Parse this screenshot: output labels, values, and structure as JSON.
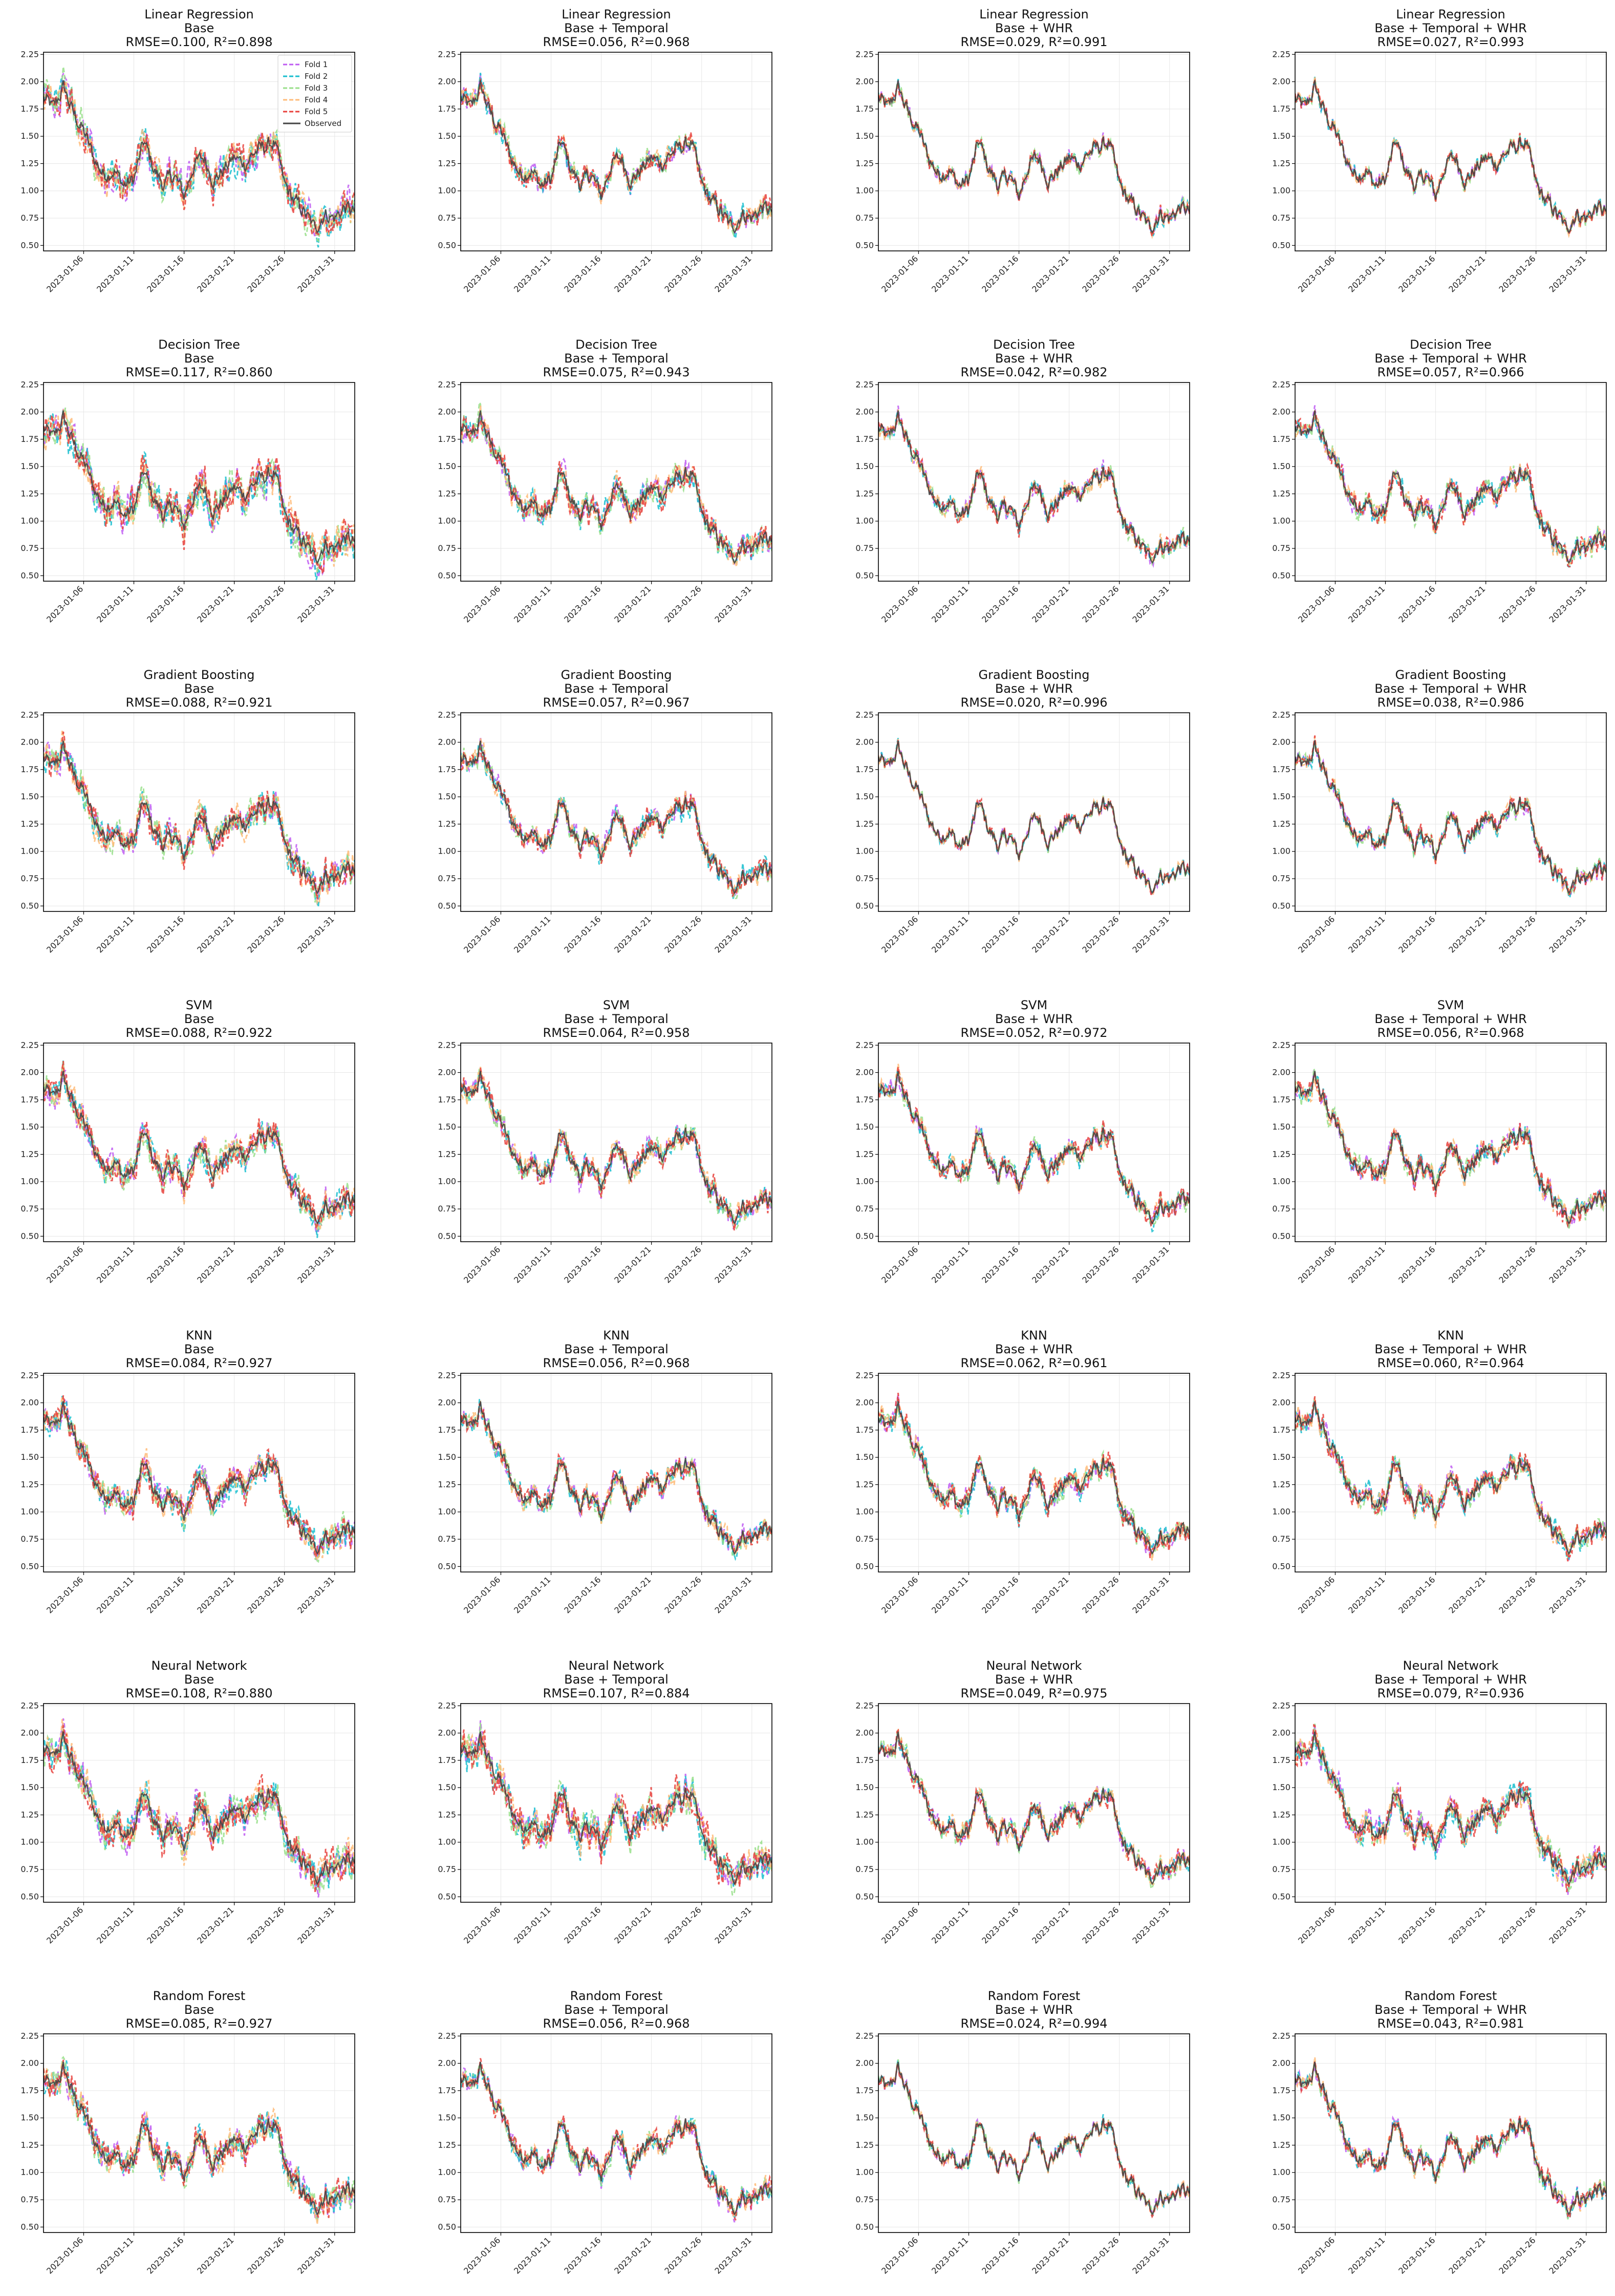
{
  "figure": {
    "models": [
      "Linear Regression",
      "Decision Tree",
      "Gradient Boosting",
      "SVM",
      "KNN",
      "Neural Network",
      "Random Forest"
    ],
    "feature_sets": [
      "Base",
      "Base + Temporal",
      "Base + WHR",
      "Base + Temporal + WHR"
    ]
  },
  "chart_data": {
    "type": "line",
    "grid": true,
    "legend_placement": "upper-right (first panel only)",
    "series_style": {
      "Fold 1": {
        "color": "#bf5cf2",
        "dash": "dashed"
      },
      "Fold 2": {
        "color": "#17becf",
        "dash": "dashed"
      },
      "Fold 3": {
        "color": "#98df8a",
        "dash": "dashed"
      },
      "Fold 4": {
        "color": "#ffbb78",
        "dash": "dashed"
      },
      "Fold 5": {
        "color": "#e8413c",
        "dash": "dashed"
      },
      "Observed": {
        "color": "#444444",
        "dash": "solid"
      }
    },
    "legend": [
      "Fold 1",
      "Fold 2",
      "Fold 3",
      "Fold 4",
      "Fold 5",
      "Observed"
    ],
    "ylim": [
      0.45,
      2.27
    ],
    "yticks": [
      "0.50",
      "0.75",
      "1.00",
      "1.25",
      "1.50",
      "1.75",
      "2.00",
      "2.25"
    ],
    "xlim": [
      "2023-01-02",
      "2023-02-02"
    ],
    "xticks": [
      "2023-01-06",
      "2023-01-11",
      "2023-01-16",
      "2023-01-21",
      "2023-01-26",
      "2023-01-31"
    ],
    "observed_approx": {
      "x": [
        "2023-01-02",
        "2023-01-03",
        "2023-01-04",
        "2023-01-05",
        "2023-01-06",
        "2023-01-07",
        "2023-01-08",
        "2023-01-09",
        "2023-01-10",
        "2023-01-11",
        "2023-01-12",
        "2023-01-13",
        "2023-01-14",
        "2023-01-15",
        "2023-01-16",
        "2023-01-17",
        "2023-01-18",
        "2023-01-19",
        "2023-01-20",
        "2023-01-21",
        "2023-01-22",
        "2023-01-23",
        "2023-01-24",
        "2023-01-25",
        "2023-01-26",
        "2023-01-27",
        "2023-01-28",
        "2023-01-29",
        "2023-01-30",
        "2023-01-31",
        "2023-02-01",
        "2023-02-02"
      ],
      "y": [
        1.85,
        1.75,
        1.95,
        1.7,
        1.55,
        1.3,
        1.15,
        1.2,
        1.05,
        1.1,
        1.45,
        1.2,
        1.05,
        1.15,
        0.95,
        1.25,
        1.3,
        1.1,
        1.2,
        1.3,
        1.25,
        1.35,
        1.4,
        1.45,
        1.05,
        0.9,
        0.8,
        0.65,
        0.8,
        0.75,
        0.85,
        0.8
      ]
    },
    "panels": [
      {
        "model": "Linear Regression",
        "features": "Base",
        "metrics": "RMSE=0.100, R²=0.898"
      },
      {
        "model": "Linear Regression",
        "features": "Base + Temporal",
        "metrics": "RMSE=0.056, R²=0.968"
      },
      {
        "model": "Linear Regression",
        "features": "Base + WHR",
        "metrics": "RMSE=0.029, R²=0.991"
      },
      {
        "model": "Linear Regression",
        "features": "Base + Temporal + WHR",
        "metrics": "RMSE=0.027, R²=0.993"
      },
      {
        "model": "Decision Tree",
        "features": "Base",
        "metrics": "RMSE=0.117, R²=0.860"
      },
      {
        "model": "Decision Tree",
        "features": "Base + Temporal",
        "metrics": "RMSE=0.075, R²=0.943"
      },
      {
        "model": "Decision Tree",
        "features": "Base + WHR",
        "metrics": "RMSE=0.042, R²=0.982"
      },
      {
        "model": "Decision Tree",
        "features": "Base + Temporal + WHR",
        "metrics": "RMSE=0.057, R²=0.966"
      },
      {
        "model": "Gradient Boosting",
        "features": "Base",
        "metrics": "RMSE=0.088, R²=0.921"
      },
      {
        "model": "Gradient Boosting",
        "features": "Base + Temporal",
        "metrics": "RMSE=0.057, R²=0.967"
      },
      {
        "model": "Gradient Boosting",
        "features": "Base + WHR",
        "metrics": "RMSE=0.020, R²=0.996"
      },
      {
        "model": "Gradient Boosting",
        "features": "Base + Temporal + WHR",
        "metrics": "RMSE=0.038, R²=0.986"
      },
      {
        "model": "SVM",
        "features": "Base",
        "metrics": "RMSE=0.088, R²=0.922"
      },
      {
        "model": "SVM",
        "features": "Base + Temporal",
        "metrics": "RMSE=0.064, R²=0.958"
      },
      {
        "model": "SVM",
        "features": "Base + WHR",
        "metrics": "RMSE=0.052, R²=0.972"
      },
      {
        "model": "SVM",
        "features": "Base + Temporal + WHR",
        "metrics": "RMSE=0.056, R²=0.968"
      },
      {
        "model": "KNN",
        "features": "Base",
        "metrics": "RMSE=0.084, R²=0.927"
      },
      {
        "model": "KNN",
        "features": "Base + Temporal",
        "metrics": "RMSE=0.056, R²=0.968"
      },
      {
        "model": "KNN",
        "features": "Base + WHR",
        "metrics": "RMSE=0.062, R²=0.961"
      },
      {
        "model": "KNN",
        "features": "Base + Temporal + WHR",
        "metrics": "RMSE=0.060, R²=0.964"
      },
      {
        "model": "Neural Network",
        "features": "Base",
        "metrics": "RMSE=0.108, R²=0.880"
      },
      {
        "model": "Neural Network",
        "features": "Base + Temporal",
        "metrics": "RMSE=0.107, R²=0.884"
      },
      {
        "model": "Neural Network",
        "features": "Base + WHR",
        "metrics": "RMSE=0.049, R²=0.975"
      },
      {
        "model": "Neural Network",
        "features": "Base + Temporal + WHR",
        "metrics": "RMSE=0.079, R²=0.936"
      },
      {
        "model": "Random Forest",
        "features": "Base",
        "metrics": "RMSE=0.085, R²=0.927"
      },
      {
        "model": "Random Forest",
        "features": "Base + Temporal",
        "metrics": "RMSE=0.056, R²=0.968"
      },
      {
        "model": "Random Forest",
        "features": "Base + WHR",
        "metrics": "RMSE=0.024, R²=0.994"
      },
      {
        "model": "Random Forest",
        "features": "Base + Temporal + WHR",
        "metrics": "RMSE=0.043, R²=0.981"
      }
    ]
  }
}
